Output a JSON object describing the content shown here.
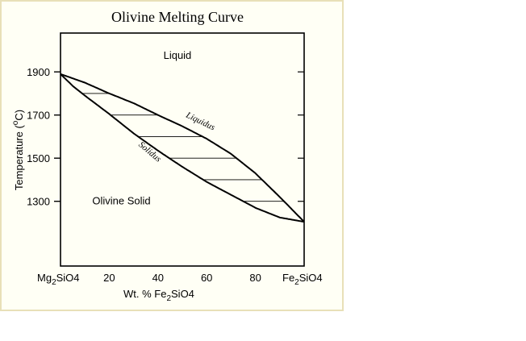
{
  "colors": {
    "panel_background": "#fffff5",
    "panel_border": "#e8e0b8",
    "ink": "#000000"
  },
  "chart_data": {
    "type": "line",
    "title": "Olivine Melting Curve",
    "xlabel_parts": [
      "Wt. % Fe",
      "2",
      "SiO4"
    ],
    "ylabel_parts": [
      "Temperature (",
      "o",
      "C)"
    ],
    "x_endpoints": {
      "left_parts": [
        "Mg",
        "2",
        "SiO4"
      ],
      "right_parts": [
        "Fe",
        "2",
        "SiO4"
      ]
    },
    "xticks": [
      20,
      40,
      60,
      80
    ],
    "yticks": [
      1300,
      1500,
      1700,
      1900
    ],
    "xlim": [
      0,
      100
    ],
    "ylim": [
      1000,
      2080
    ],
    "series": [
      {
        "name": "Liquidus",
        "x": [
          0,
          10,
          20,
          30,
          40,
          50,
          60,
          70,
          80,
          90,
          100
        ],
        "y": [
          1890,
          1850,
          1800,
          1755,
          1700,
          1648,
          1590,
          1520,
          1430,
          1320,
          1205
        ]
      },
      {
        "name": "Solidus",
        "x": [
          0,
          5,
          10,
          20,
          30,
          40,
          50,
          60,
          70,
          80,
          90,
          100
        ],
        "y": [
          1890,
          1835,
          1790,
          1705,
          1615,
          1535,
          1460,
          1390,
          1330,
          1270,
          1225,
          1205
        ]
      }
    ],
    "tie_line_temperatures": [
      1800,
      1700,
      1600,
      1500,
      1400,
      1300
    ],
    "annotations": [
      {
        "text": "Liquid",
        "x": 48,
        "y": 1960
      },
      {
        "text": "Olivine Solid",
        "x": 25,
        "y": 1285
      },
      {
        "text": "Liquidus",
        "x": 57,
        "y": 1660,
        "angle": 26
      },
      {
        "text": "Solidus",
        "x": 36,
        "y": 1520,
        "angle": 40
      }
    ]
  }
}
